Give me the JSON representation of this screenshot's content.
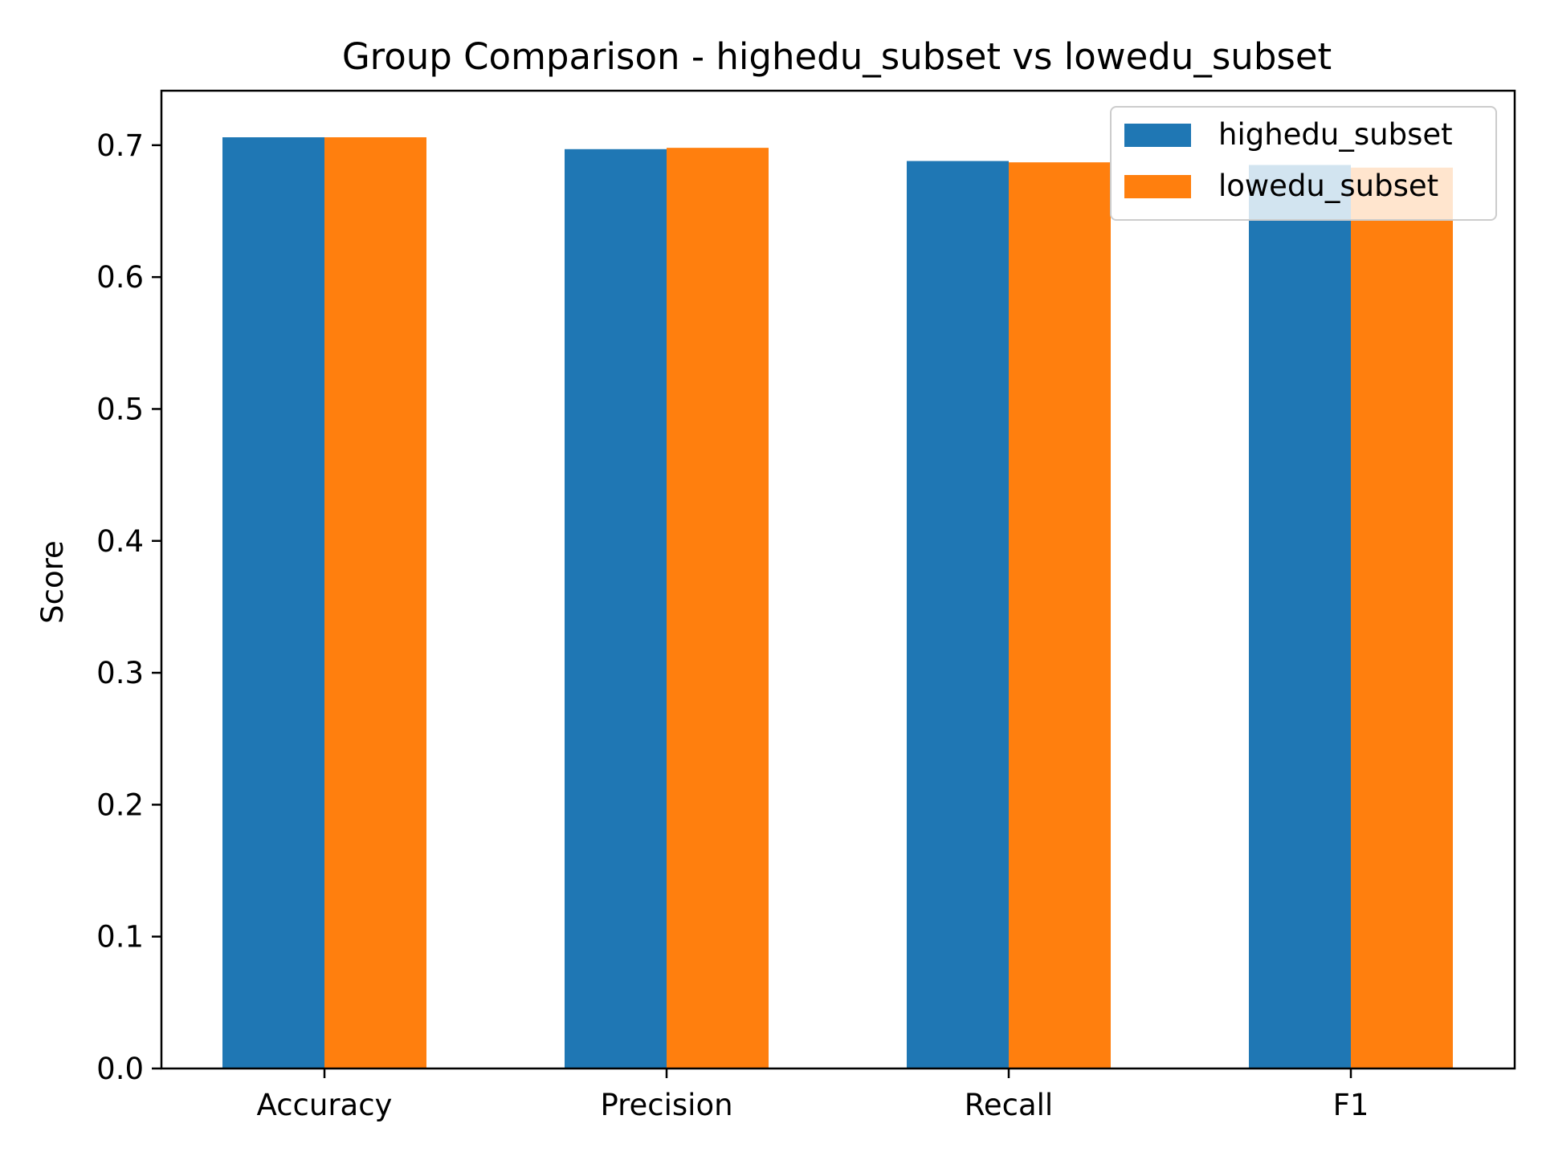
{
  "chart_data": {
    "type": "bar",
    "title": "Group Comparison - highedu_subset vs lowedu_subset",
    "xlabel": "",
    "ylabel": "Score",
    "categories": [
      "Accuracy",
      "Precision",
      "Recall",
      "F1"
    ],
    "series": [
      {
        "name": "highedu_subset",
        "color": "#1f77b4",
        "values": [
          0.706,
          0.697,
          0.688,
          0.685
        ]
      },
      {
        "name": "lowedu_subset",
        "color": "#ff7f0e",
        "values": [
          0.706,
          0.698,
          0.687,
          0.683
        ]
      }
    ],
    "ylim": [
      0,
      0.7413
    ],
    "yticks": [
      0.0,
      0.1,
      0.2,
      0.3,
      0.4,
      0.5,
      0.6,
      0.7
    ],
    "ytick_labels": [
      "0.0",
      "0.1",
      "0.2",
      "0.3",
      "0.4",
      "0.5",
      "0.6",
      "0.7"
    ],
    "grid": false,
    "legend_position": "top-right"
  }
}
